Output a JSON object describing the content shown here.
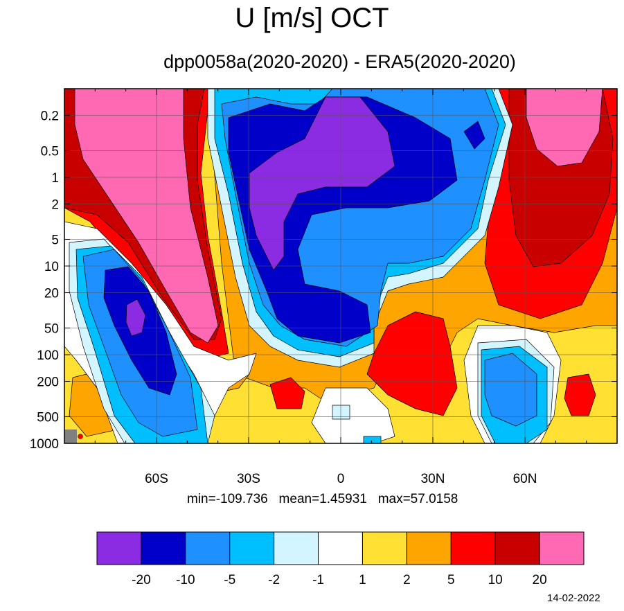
{
  "chart_data": {
    "type": "heatmap",
    "title": "U [m/s] OCT",
    "subtitle": "dpp0058a(2020-2020) - ERA5(2020-2020)",
    "x_tick_labels": [
      "60S",
      "30S",
      "0",
      "30N",
      "60N"
    ],
    "x_ticks_deg": [
      -60,
      -30,
      0,
      30,
      60
    ],
    "xlim": [
      -90,
      90
    ],
    "y_tick_labels": [
      "0.2",
      "0.5",
      "1",
      "2",
      "5",
      "10",
      "20",
      "50",
      "100",
      "200",
      "500",
      "1000"
    ],
    "y_ticks": [
      0.2,
      0.5,
      1,
      2,
      5,
      10,
      20,
      50,
      100,
      200,
      500,
      1000
    ],
    "y_scale": "log",
    "y_inverted": true,
    "ylim": [
      0.1,
      1000
    ],
    "grid": true,
    "stats": {
      "min": "-109.736",
      "mean": "1.45931",
      "max": "57.0158"
    },
    "stats_text": "min=-109.736   mean=1.45931   max=57.0158",
    "colorbar": {
      "colors": [
        "#8b2be2",
        "#0000c8",
        "#1e90ff",
        "#00bfff",
        "#d2f5ff",
        "#ffffff",
        "#ffe033",
        "#ffa500",
        "#ff0000",
        "#c80000",
        "#ff69b4"
      ],
      "levels": [
        -20,
        -10,
        -5,
        -2,
        -1,
        1,
        2,
        5,
        10,
        20
      ],
      "level_labels": [
        "-20",
        "-10",
        "-5",
        "-2",
        "-1",
        "1",
        "2",
        "5",
        "10",
        "20"
      ]
    },
    "regions": [
      {
        "name": "southern-stratospheric-jet",
        "lat": -65,
        "p": 1,
        "level": "20+",
        "color": "#ff69b4"
      },
      {
        "name": "northern-stratospheric-jet",
        "lat": 70,
        "p": 0.3,
        "level": "20+",
        "color": "#ff69b4"
      },
      {
        "name": "tropical-upper-easterly",
        "lat": 0,
        "p": 1,
        "level": "<-20",
        "color": "#8b2be2"
      },
      {
        "name": "southern-subtropical-minimum",
        "lat": -65,
        "p": 50,
        "level": "<-20",
        "color": "#8b2be2"
      },
      {
        "name": "northern-midlatitude-maximum",
        "lat": 60,
        "p": 8,
        "level": "10-20",
        "color": "#c80000"
      },
      {
        "name": "tropical-lower-maximum",
        "lat": 20,
        "p": 150,
        "level": "5-10",
        "color": "#ff0000"
      },
      {
        "name": "northern-tropospheric-minimum",
        "lat": 52,
        "p": 250,
        "level": "-5..-2",
        "color": "#1e90ff"
      }
    ]
  },
  "date_stamp": "14-02-2022"
}
